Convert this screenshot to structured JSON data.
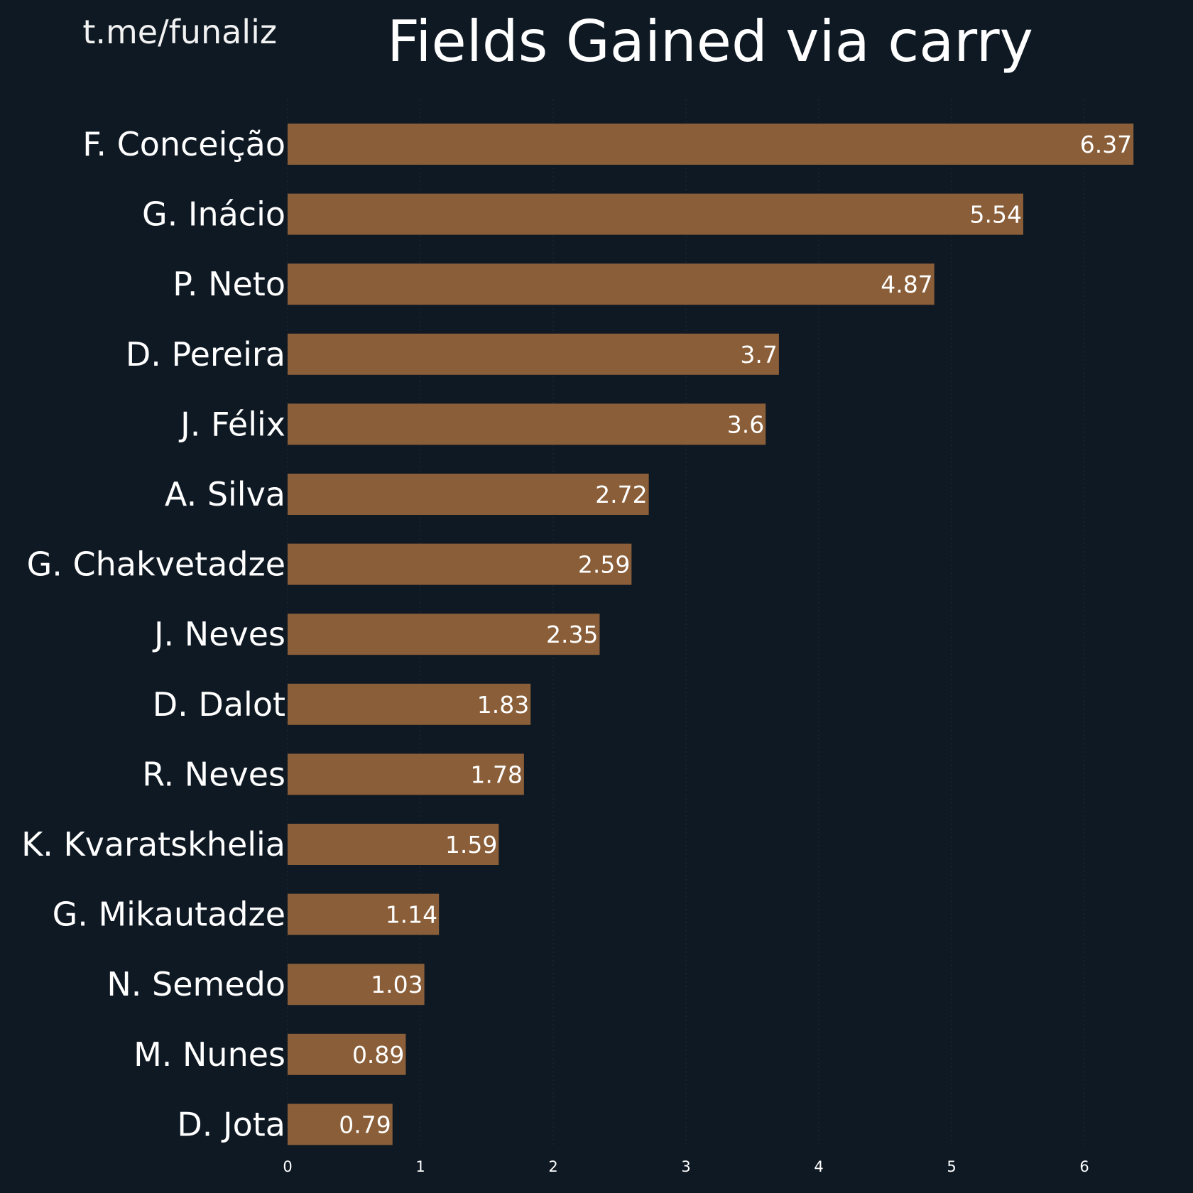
{
  "watermark": "t.me/funaliz",
  "chart_data": {
    "type": "bar",
    "orientation": "horizontal",
    "title": "Fields Gained via carry",
    "categories": [
      "F. Conceição",
      "G. Inácio",
      "P. Neto",
      "D. Pereira",
      "J. Félix",
      "A. Silva",
      "G. Chakvetadze",
      "J. Neves",
      "D. Dalot",
      "R. Neves",
      "K. Kvaratskhelia",
      "G. Mikautadze",
      "N. Semedo",
      "M. Nunes",
      "D. Jota"
    ],
    "values": [
      6.37,
      5.54,
      4.87,
      3.7,
      3.6,
      2.72,
      2.59,
      2.35,
      1.83,
      1.78,
      1.59,
      1.14,
      1.03,
      0.89,
      0.79
    ],
    "value_labels": [
      "6.37",
      "5.54",
      "4.87",
      "3.7",
      "3.6",
      "2.72",
      "2.59",
      "2.35",
      "1.83",
      "1.78",
      "1.59",
      "1.14",
      "1.03",
      "0.89",
      "0.79"
    ],
    "xticks": [
      "0",
      "1",
      "2",
      "3",
      "4",
      "5",
      "6"
    ],
    "xlim": [
      0,
      6.6
    ],
    "xlabel": "",
    "ylabel": "",
    "grid": true,
    "legend": "none",
    "colors": {
      "background": "#0f1923",
      "bar": "#8a5e38",
      "text": "#ffffff"
    }
  }
}
